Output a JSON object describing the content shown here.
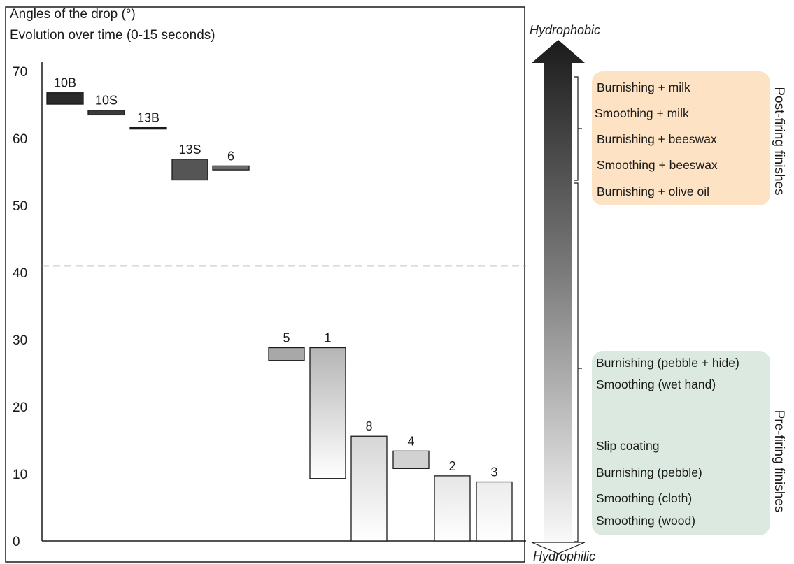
{
  "chart_data": {
    "type": "bar",
    "title": "Angles of the drop (°)",
    "subtitle": "Evolution over time (0-15 seconds)",
    "ylim": [
      0,
      70
    ],
    "y_ticks": [
      0,
      10,
      20,
      30,
      40,
      50,
      60,
      70
    ],
    "threshold_line": 41,
    "grid": false,
    "series": [
      {
        "label": "10B",
        "low": 65.1,
        "high": 66.8,
        "color": "#2b2b2b"
      },
      {
        "label": "10S",
        "low": 63.5,
        "high": 64.2,
        "color": "#3a3a3a"
      },
      {
        "label": "13B",
        "low": 61.4,
        "high": 61.6,
        "color": "#1a1a1a"
      },
      {
        "label": "13S",
        "low": 53.8,
        "high": 56.9,
        "color": "#555555"
      },
      {
        "label": "6",
        "low": 55.3,
        "high": 55.9,
        "color": "#6a6a6a"
      },
      {
        "label": "5",
        "low": 26.9,
        "high": 28.8,
        "color": "#a8a8a8"
      },
      {
        "label": "1",
        "low": 9.3,
        "high": 28.8,
        "color": "#b5b5b5"
      },
      {
        "label": "8",
        "low": 0,
        "high": 15.6,
        "color": "#d6d6d6"
      },
      {
        "label": "4",
        "low": 10.8,
        "high": 13.4,
        "color": "#d2d2d2"
      },
      {
        "label": "2",
        "low": 0,
        "high": 9.7,
        "color": "#e6e6e6"
      },
      {
        "label": "3",
        "low": 0,
        "high": 8.8,
        "color": "#ececec"
      }
    ]
  },
  "scale": {
    "top_label": "Hydrophobic",
    "bottom_label": "Hydrophilic"
  },
  "legend": {
    "post_firing": {
      "title": "Post-firing finishes",
      "color": "#fde2c4",
      "items": [
        "Burnishing + milk",
        "Smoothing + milk",
        "Burnishing + beeswax",
        "Smoothing + beeswax",
        "Burnishing + olive oil"
      ]
    },
    "pre_firing": {
      "title": "Pre-firing finishes",
      "color": "#dce9e1",
      "items": [
        "Burnishing (pebble + hide)",
        "Smoothing (wet hand)",
        "Slip coating",
        "Burnishing (pebble)",
        "Smoothing (cloth)",
        "Smoothing (wood)"
      ]
    }
  }
}
